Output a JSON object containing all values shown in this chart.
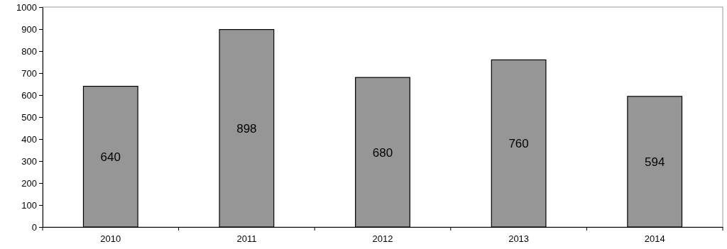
{
  "chart_data": {
    "type": "bar",
    "categories": [
      "2010",
      "2011",
      "2012",
      "2013",
      "2014"
    ],
    "values": [
      640,
      898,
      680,
      760,
      594
    ],
    "color": "#969696",
    "ylim": [
      0,
      1000
    ],
    "yticks": [
      0,
      100,
      200,
      300,
      400,
      500,
      600,
      700,
      800,
      900,
      1000
    ],
    "data_labels": true,
    "grid": false
  }
}
